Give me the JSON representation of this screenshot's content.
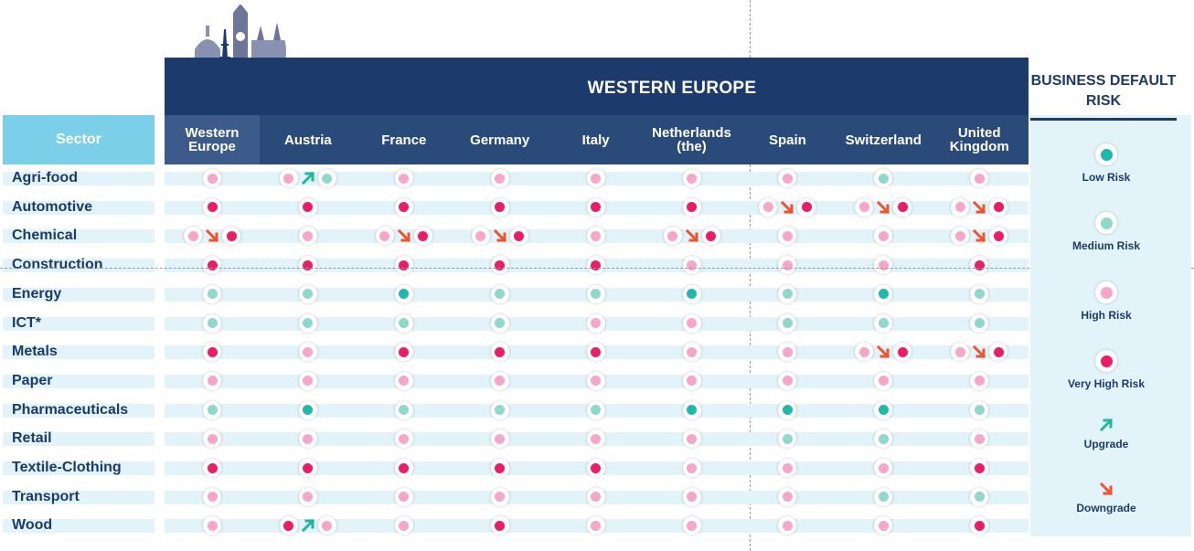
{
  "banner": {
    "title": "WESTERN EUROPE"
  },
  "sector_header": "Sector",
  "columns": [
    "Western Europe",
    "Austria",
    "France",
    "Germany",
    "Italy",
    "Netherlands (the)",
    "Spain",
    "Switzerland",
    "United Kingdom"
  ],
  "legend": {
    "title": "BUSINESS DEFAULT RISK",
    "items": [
      {
        "key": "L",
        "label": "Low Risk"
      },
      {
        "key": "M",
        "label": "Medium Risk"
      },
      {
        "key": "H",
        "label": "High Risk"
      },
      {
        "key": "V",
        "label": "Very High Risk"
      },
      {
        "key": "up",
        "label": "Upgrade"
      },
      {
        "key": "down",
        "label": "Downgrade"
      }
    ]
  },
  "colors": {
    "L": "#1fb9ab",
    "M": "#8fd8cb",
    "H": "#f7a6c9",
    "V": "#ec1c68",
    "up": "#1fb99a",
    "down": "#f0542f",
    "navy": "#1c3a6b"
  },
  "rows": [
    {
      "sector": "Agri-food",
      "cells": [
        "H",
        "H>M",
        "H",
        "H",
        "H",
        "H",
        "H",
        "M",
        "H"
      ]
    },
    {
      "sector": "Automotive",
      "cells": [
        "V",
        "V",
        "V",
        "V",
        "V",
        "V",
        "H>V",
        "H>V",
        "H>V"
      ]
    },
    {
      "sector": "Chemical",
      "cells": [
        "H>V",
        "H",
        "H>V",
        "H>V",
        "H",
        "H>V",
        "H",
        "H",
        "H>V"
      ]
    },
    {
      "sector": "Construction",
      "cells": [
        "V",
        "V",
        "V",
        "V",
        "V",
        "H",
        "H",
        "H",
        "V"
      ]
    },
    {
      "sector": "Energy",
      "cells": [
        "M",
        "M",
        "L",
        "M",
        "M",
        "L",
        "M",
        "L",
        "M"
      ]
    },
    {
      "sector": "ICT*",
      "cells": [
        "M",
        "M",
        "M",
        "M",
        "H",
        "H",
        "M",
        "M",
        "M"
      ]
    },
    {
      "sector": "Metals",
      "cells": [
        "V",
        "H",
        "V",
        "V",
        "V",
        "H",
        "H",
        "H>V",
        "H>V"
      ]
    },
    {
      "sector": "Paper",
      "cells": [
        "H",
        "H",
        "H",
        "H",
        "H",
        "H",
        "H",
        "H",
        "H"
      ]
    },
    {
      "sector": "Pharmaceuticals",
      "cells": [
        "M",
        "L",
        "M",
        "M",
        "M",
        "L",
        "L",
        "L",
        "M"
      ]
    },
    {
      "sector": "Retail",
      "cells": [
        "H",
        "H",
        "H",
        "H",
        "H",
        "H",
        "M",
        "M",
        "H"
      ]
    },
    {
      "sector": "Textile-Clothing",
      "cells": [
        "V",
        "V",
        "V",
        "V",
        "V",
        "H",
        "H",
        "H",
        "V"
      ]
    },
    {
      "sector": "Transport",
      "cells": [
        "H",
        "H",
        "H",
        "H",
        "H",
        "H",
        "H",
        "M",
        "M"
      ]
    },
    {
      "sector": "Wood",
      "cells": [
        "H",
        "V>H",
        "H",
        "V",
        "H",
        "H",
        "H",
        "H",
        "V"
      ]
    }
  ]
}
